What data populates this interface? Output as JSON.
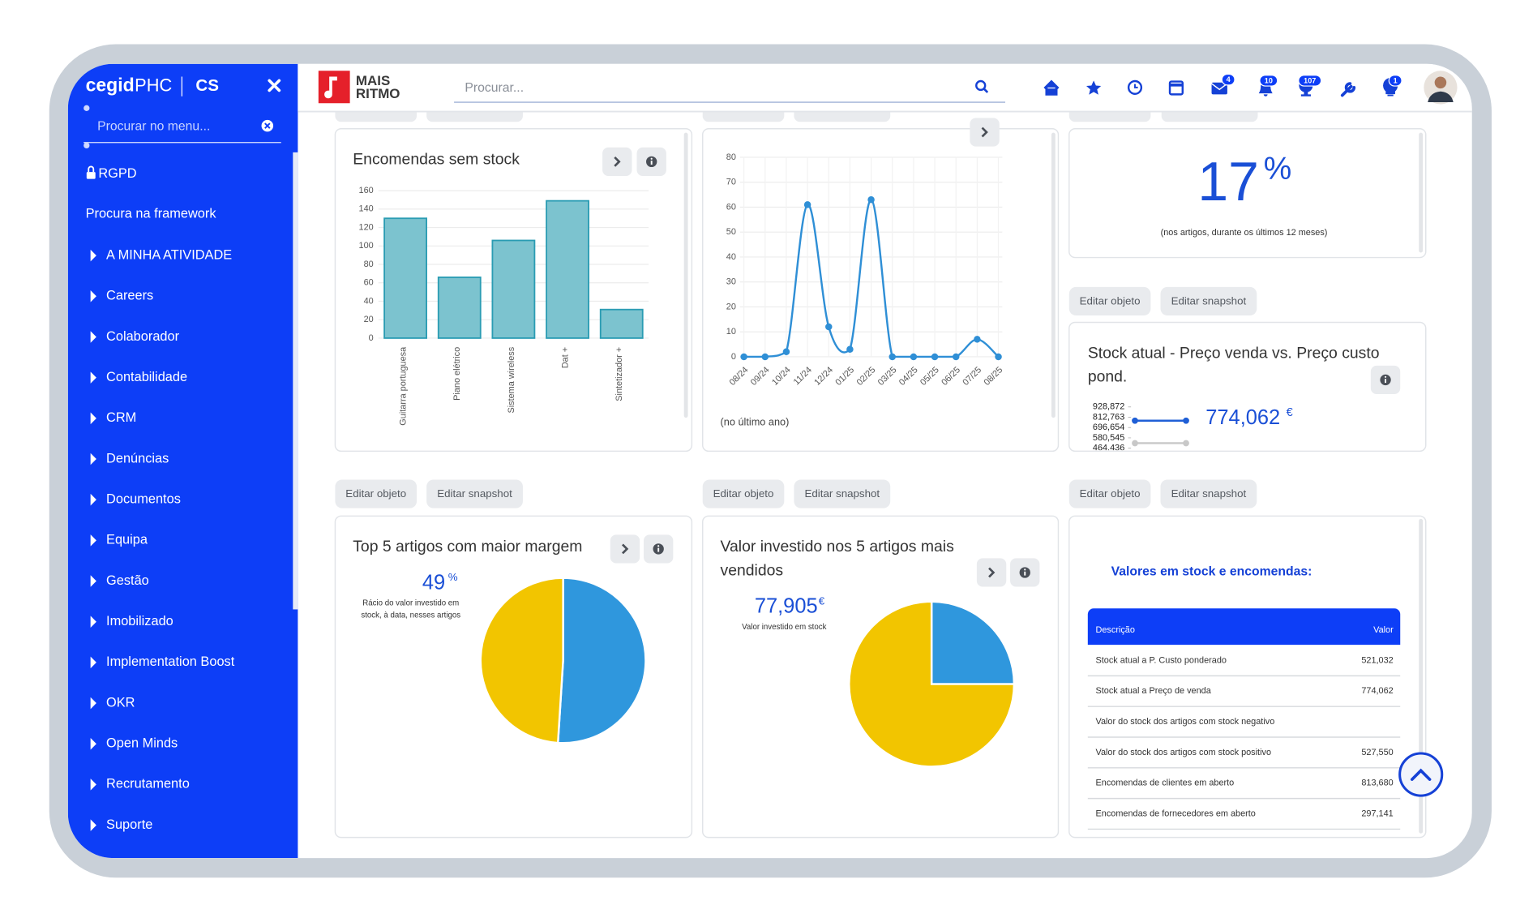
{
  "sidebar": {
    "brand": "cegid",
    "product": "PHC",
    "company": "CS",
    "search_placeholder": "Procurar no menu...",
    "links": [
      "RGPD",
      "Procura na framework"
    ],
    "menu": [
      "A MINHA ATIVIDADE",
      "Careers",
      "Colaborador",
      "Contabilidade",
      "CRM",
      "Denúncias",
      "Documentos",
      "Equipa",
      "Gestão",
      "Imobilizado",
      "Implementation Boost",
      "OKR",
      "Open Minds",
      "Recrutamento",
      "Suporte"
    ]
  },
  "header": {
    "logo_top": "MAIS",
    "logo_bottom": "RITMO",
    "search_placeholder": "Procurar...",
    "badges": [
      4,
      10,
      107,
      1
    ]
  },
  "buttons": [
    "Editar objeto",
    "Editar snapshot"
  ],
  "widgets": {
    "orders_without_stock": {
      "title": "Encomendas sem stock",
      "chart": {
        "type": "bar",
        "categories": [
          "Guitarra portuguesa",
          "Piano elétrico",
          "Sistema wireless",
          "Dat +",
          "Sintetizador +"
        ],
        "values": [
          130,
          66,
          106,
          149,
          31
        ],
        "color": "#7cc3cf",
        "border_color": "#2a9cb3",
        "ylim": [
          0,
          160
        ],
        "yticks": [
          0,
          20,
          40,
          60,
          80,
          100,
          120,
          140,
          160
        ],
        "grid": true
      }
    },
    "last_year": {
      "chart": {
        "type": "line",
        "categories": [
          "08/24",
          "09/24",
          "10/24",
          "11/24",
          "12/24",
          "01/25",
          "02/25",
          "03/25",
          "04/25",
          "05/25",
          "06/25",
          "07/25",
          "08/25"
        ],
        "values": [
          0,
          0,
          2,
          61,
          12,
          3,
          63,
          0,
          0,
          0,
          0,
          7,
          0
        ],
        "color": "#2f8fd6",
        "ylim": [
          0,
          80
        ],
        "yticks": [
          0,
          10,
          20,
          30,
          40,
          50,
          60,
          70,
          80
        ],
        "grid": true
      },
      "note": "(no último ano)"
    },
    "rotation": {
      "value": 17,
      "unit": "%",
      "note": "(nos artigos, durante os últimos 12 meses)"
    },
    "stock_price": {
      "title": [
        "Stock atual - Preço venda vs. Preço custo",
        "pond."
      ],
      "value": "774,062",
      "unit": "€",
      "sparkline": {
        "ylim": [
          464436,
          928872
        ],
        "yticks": [
          {
            "value": 928872,
            "label": "928,872"
          },
          {
            "value": 812763,
            "label": "812,763"
          },
          {
            "value": 696654,
            "label": "696,654"
          },
          {
            "value": 580545,
            "label": "580,545"
          },
          {
            "value": 464436,
            "label": "464,436"
          }
        ],
        "series": [
          {
            "color": "#1f5fd6",
            "values": [
              774062,
              774062
            ]
          },
          {
            "color": "#c8c8c8",
            "values": [
              521032,
              521032
            ]
          }
        ]
      }
    },
    "top5_margin": {
      "title": "Top 5 artigos com maior margem",
      "value": 49,
      "unit": "%",
      "caption": [
        "Rácio do valor investido em",
        "stock, à data, nesses artigos"
      ],
      "pie": {
        "type": "pie",
        "values": [
          51,
          49
        ],
        "colors": [
          "#2f97dd",
          "#f2c500"
        ]
      }
    },
    "invested_top5": {
      "title": [
        "Valor investido nos 5 artigos mais",
        "vendidos"
      ],
      "value": "77,905",
      "unit": "€",
      "caption": "Valor investido em stock",
      "pie": {
        "type": "pie",
        "values": [
          25,
          75
        ],
        "colors": [
          "#2f97dd",
          "#f2c500"
        ]
      }
    },
    "stock_orders": {
      "title": "Valores em stock e encomendas:",
      "table": {
        "header": [
          "Descrição",
          "Valor"
        ],
        "rows": [
          [
            "Stock atual a P. Custo ponderado",
            "521,032"
          ],
          [
            "Stock atual a Preço de venda",
            "774,062"
          ],
          [
            "Valor do stock dos artigos com stock negativo"
          ],
          [
            "Valor do stock dos artigos com stock positivo",
            "527,550"
          ],
          [
            "Encomendas de clientes em aberto",
            "813,680"
          ],
          [
            "Encomendas de fornecedores em aberto",
            "297,141"
          ]
        ]
      }
    }
  }
}
